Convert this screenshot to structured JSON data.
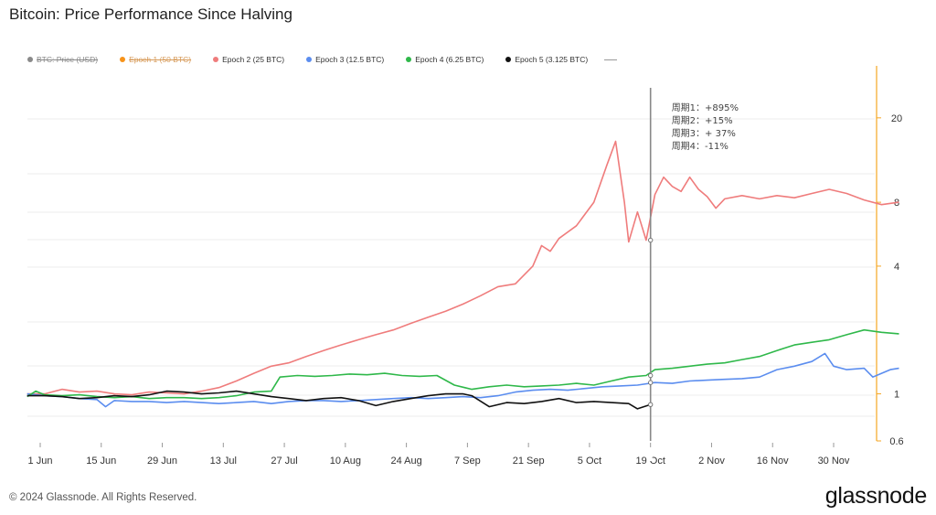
{
  "title": "Bitcoin: Price Performance Since Halving",
  "footer": {
    "copyright": "© 2024 Glassnode. All Rights Reserved.",
    "brand": "glassnode"
  },
  "legend": [
    {
      "label": "BTC: Price (USD)",
      "color": "#8a8a8a",
      "enabled": false
    },
    {
      "label": "Epoch 1 (50 BTC)",
      "color": "#f7931a",
      "enabled": false
    },
    {
      "label": "Epoch 2 (25 BTC)",
      "color": "#ef7c7c",
      "enabled": true
    },
    {
      "label": "Epoch 3 (12.5 BTC)",
      "color": "#5b8def",
      "enabled": true
    },
    {
      "label": "Epoch 4 (6.25 BTC)",
      "color": "#2fb84a",
      "enabled": true
    },
    {
      "label": "Epoch 5 (3.125 BTC)",
      "color": "#111111",
      "enabled": true
    }
  ],
  "annotation": [
    "周期1：+895%",
    "周期2：+15%",
    "周期3：+ 37%",
    "周期4：-11%"
  ],
  "chart_data": {
    "type": "line",
    "title": "Bitcoin: Price Performance Since Halving",
    "y_scale": "log",
    "ylim": [
      0.6,
      30
    ],
    "yticks": [
      0.6,
      1,
      4,
      8,
      20
    ],
    "x_tick_labels": [
      "1 Jun",
      "15 Jun",
      "29 Jun",
      "13 Jul",
      "27 Jul",
      "10 Aug",
      "24 Aug",
      "7 Sep",
      "21 Sep",
      "5 Oct",
      "19 Oct",
      "2 Nov",
      "16 Nov",
      "30 Nov"
    ],
    "x_tick_days": [
      1,
      15,
      29,
      43,
      57,
      71,
      85,
      99,
      113,
      127,
      141,
      155,
      169,
      183
    ],
    "crosshair_day": 141,
    "grid": true,
    "legend_position": "top",
    "series": [
      {
        "name": "Epoch 2 (25 BTC)",
        "color": "#ef7c7c",
        "points": [
          [
            -2,
            1.0
          ],
          [
            2,
            1.0
          ],
          [
            6,
            1.05
          ],
          [
            10,
            1.02
          ],
          [
            14,
            1.03
          ],
          [
            18,
            1.0
          ],
          [
            22,
            0.99
          ],
          [
            26,
            1.02
          ],
          [
            30,
            1.01
          ],
          [
            34,
            1.0
          ],
          [
            38,
            1.03
          ],
          [
            42,
            1.07
          ],
          [
            46,
            1.15
          ],
          [
            50,
            1.25
          ],
          [
            54,
            1.35
          ],
          [
            58,
            1.4
          ],
          [
            62,
            1.5
          ],
          [
            66,
            1.6
          ],
          [
            70,
            1.7
          ],
          [
            74,
            1.8
          ],
          [
            78,
            1.9
          ],
          [
            82,
            2.0
          ],
          [
            86,
            2.15
          ],
          [
            90,
            2.3
          ],
          [
            94,
            2.45
          ],
          [
            98,
            2.65
          ],
          [
            102,
            2.9
          ],
          [
            106,
            3.2
          ],
          [
            110,
            3.3
          ],
          [
            114,
            4.0
          ],
          [
            116,
            5.0
          ],
          [
            118,
            4.7
          ],
          [
            120,
            5.4
          ],
          [
            124,
            6.2
          ],
          [
            128,
            8.0
          ],
          [
            131,
            12.0
          ],
          [
            133,
            15.5
          ],
          [
            135,
            8.0
          ],
          [
            136,
            5.2
          ],
          [
            138,
            7.2
          ],
          [
            140,
            5.3
          ],
          [
            142,
            8.7
          ],
          [
            144,
            10.5
          ],
          [
            146,
            9.5
          ],
          [
            148,
            9.0
          ],
          [
            150,
            10.5
          ],
          [
            152,
            9.2
          ],
          [
            154,
            8.5
          ],
          [
            156,
            7.5
          ],
          [
            158,
            8.3
          ],
          [
            162,
            8.6
          ],
          [
            166,
            8.3
          ],
          [
            170,
            8.6
          ],
          [
            174,
            8.4
          ],
          [
            178,
            8.8
          ],
          [
            182,
            9.2
          ],
          [
            186,
            8.8
          ],
          [
            190,
            8.2
          ],
          [
            194,
            7.8
          ],
          [
            198,
            8.0
          ]
        ]
      },
      {
        "name": "Epoch 3 (12.5 BTC)",
        "color": "#5b8def",
        "points": [
          [
            -2,
            1.0
          ],
          [
            2,
            0.98
          ],
          [
            6,
            0.97
          ],
          [
            10,
            0.95
          ],
          [
            14,
            0.94
          ],
          [
            16,
            0.87
          ],
          [
            18,
            0.93
          ],
          [
            22,
            0.92
          ],
          [
            26,
            0.92
          ],
          [
            30,
            0.91
          ],
          [
            34,
            0.92
          ],
          [
            38,
            0.91
          ],
          [
            42,
            0.9
          ],
          [
            46,
            0.91
          ],
          [
            50,
            0.92
          ],
          [
            54,
            0.9
          ],
          [
            58,
            0.92
          ],
          [
            62,
            0.93
          ],
          [
            66,
            0.93
          ],
          [
            70,
            0.92
          ],
          [
            74,
            0.93
          ],
          [
            78,
            0.94
          ],
          [
            82,
            0.95
          ],
          [
            86,
            0.96
          ],
          [
            90,
            0.95
          ],
          [
            94,
            0.96
          ],
          [
            98,
            0.97
          ],
          [
            102,
            0.96
          ],
          [
            106,
            0.98
          ],
          [
            110,
            1.02
          ],
          [
            114,
            1.04
          ],
          [
            118,
            1.05
          ],
          [
            122,
            1.04
          ],
          [
            126,
            1.06
          ],
          [
            130,
            1.08
          ],
          [
            134,
            1.09
          ],
          [
            138,
            1.1
          ],
          [
            142,
            1.13
          ],
          [
            146,
            1.12
          ],
          [
            150,
            1.15
          ],
          [
            154,
            1.16
          ],
          [
            158,
            1.17
          ],
          [
            162,
            1.18
          ],
          [
            166,
            1.2
          ],
          [
            170,
            1.3
          ],
          [
            174,
            1.35
          ],
          [
            178,
            1.42
          ],
          [
            181,
            1.55
          ],
          [
            183,
            1.35
          ],
          [
            186,
            1.3
          ],
          [
            190,
            1.32
          ],
          [
            192,
            1.2
          ],
          [
            194,
            1.25
          ],
          [
            196,
            1.3
          ],
          [
            198,
            1.32
          ]
        ]
      },
      {
        "name": "Epoch 4 (6.25 BTC)",
        "color": "#2fb84a",
        "points": [
          [
            -2,
            0.97
          ],
          [
            0,
            1.03
          ],
          [
            2,
            0.99
          ],
          [
            6,
            0.98
          ],
          [
            10,
            0.99
          ],
          [
            14,
            0.97
          ],
          [
            18,
            0.96
          ],
          [
            22,
            0.97
          ],
          [
            26,
            0.95
          ],
          [
            30,
            0.96
          ],
          [
            34,
            0.96
          ],
          [
            38,
            0.95
          ],
          [
            42,
            0.96
          ],
          [
            46,
            0.98
          ],
          [
            50,
            1.02
          ],
          [
            54,
            1.03
          ],
          [
            56,
            1.2
          ],
          [
            60,
            1.22
          ],
          [
            64,
            1.21
          ],
          [
            68,
            1.22
          ],
          [
            72,
            1.24
          ],
          [
            76,
            1.23
          ],
          [
            80,
            1.25
          ],
          [
            84,
            1.22
          ],
          [
            88,
            1.21
          ],
          [
            92,
            1.22
          ],
          [
            96,
            1.1
          ],
          [
            100,
            1.05
          ],
          [
            104,
            1.08
          ],
          [
            108,
            1.1
          ],
          [
            112,
            1.08
          ],
          [
            116,
            1.09
          ],
          [
            120,
            1.1
          ],
          [
            124,
            1.12
          ],
          [
            128,
            1.1
          ],
          [
            132,
            1.15
          ],
          [
            136,
            1.2
          ],
          [
            140,
            1.22
          ],
          [
            142,
            1.3
          ],
          [
            146,
            1.32
          ],
          [
            150,
            1.35
          ],
          [
            154,
            1.38
          ],
          [
            158,
            1.4
          ],
          [
            162,
            1.45
          ],
          [
            166,
            1.5
          ],
          [
            170,
            1.6
          ],
          [
            174,
            1.7
          ],
          [
            178,
            1.75
          ],
          [
            182,
            1.8
          ],
          [
            186,
            1.9
          ],
          [
            190,
            2.0
          ],
          [
            194,
            1.95
          ],
          [
            198,
            1.92
          ]
        ]
      },
      {
        "name": "Epoch 5 (3.125 BTC)",
        "color": "#111111",
        "points": [
          [
            -2,
            0.98
          ],
          [
            2,
            0.98
          ],
          [
            6,
            0.97
          ],
          [
            10,
            0.95
          ],
          [
            14,
            0.96
          ],
          [
            18,
            0.98
          ],
          [
            22,
            0.97
          ],
          [
            26,
            0.99
          ],
          [
            30,
            1.03
          ],
          [
            34,
            1.02
          ],
          [
            38,
            1.0
          ],
          [
            42,
            1.01
          ],
          [
            46,
            1.03
          ],
          [
            50,
            1.0
          ],
          [
            54,
            0.97
          ],
          [
            58,
            0.95
          ],
          [
            62,
            0.93
          ],
          [
            66,
            0.95
          ],
          [
            70,
            0.96
          ],
          [
            74,
            0.93
          ],
          [
            78,
            0.88
          ],
          [
            82,
            0.92
          ],
          [
            86,
            0.95
          ],
          [
            90,
            0.98
          ],
          [
            94,
            1.0
          ],
          [
            98,
            1.0
          ],
          [
            100,
            0.98
          ],
          [
            104,
            0.87
          ],
          [
            108,
            0.91
          ],
          [
            112,
            0.9
          ],
          [
            116,
            0.92
          ],
          [
            120,
            0.95
          ],
          [
            124,
            0.91
          ],
          [
            128,
            0.92
          ],
          [
            132,
            0.91
          ],
          [
            136,
            0.9
          ],
          [
            138,
            0.85
          ],
          [
            141,
            0.89
          ]
        ]
      }
    ]
  }
}
